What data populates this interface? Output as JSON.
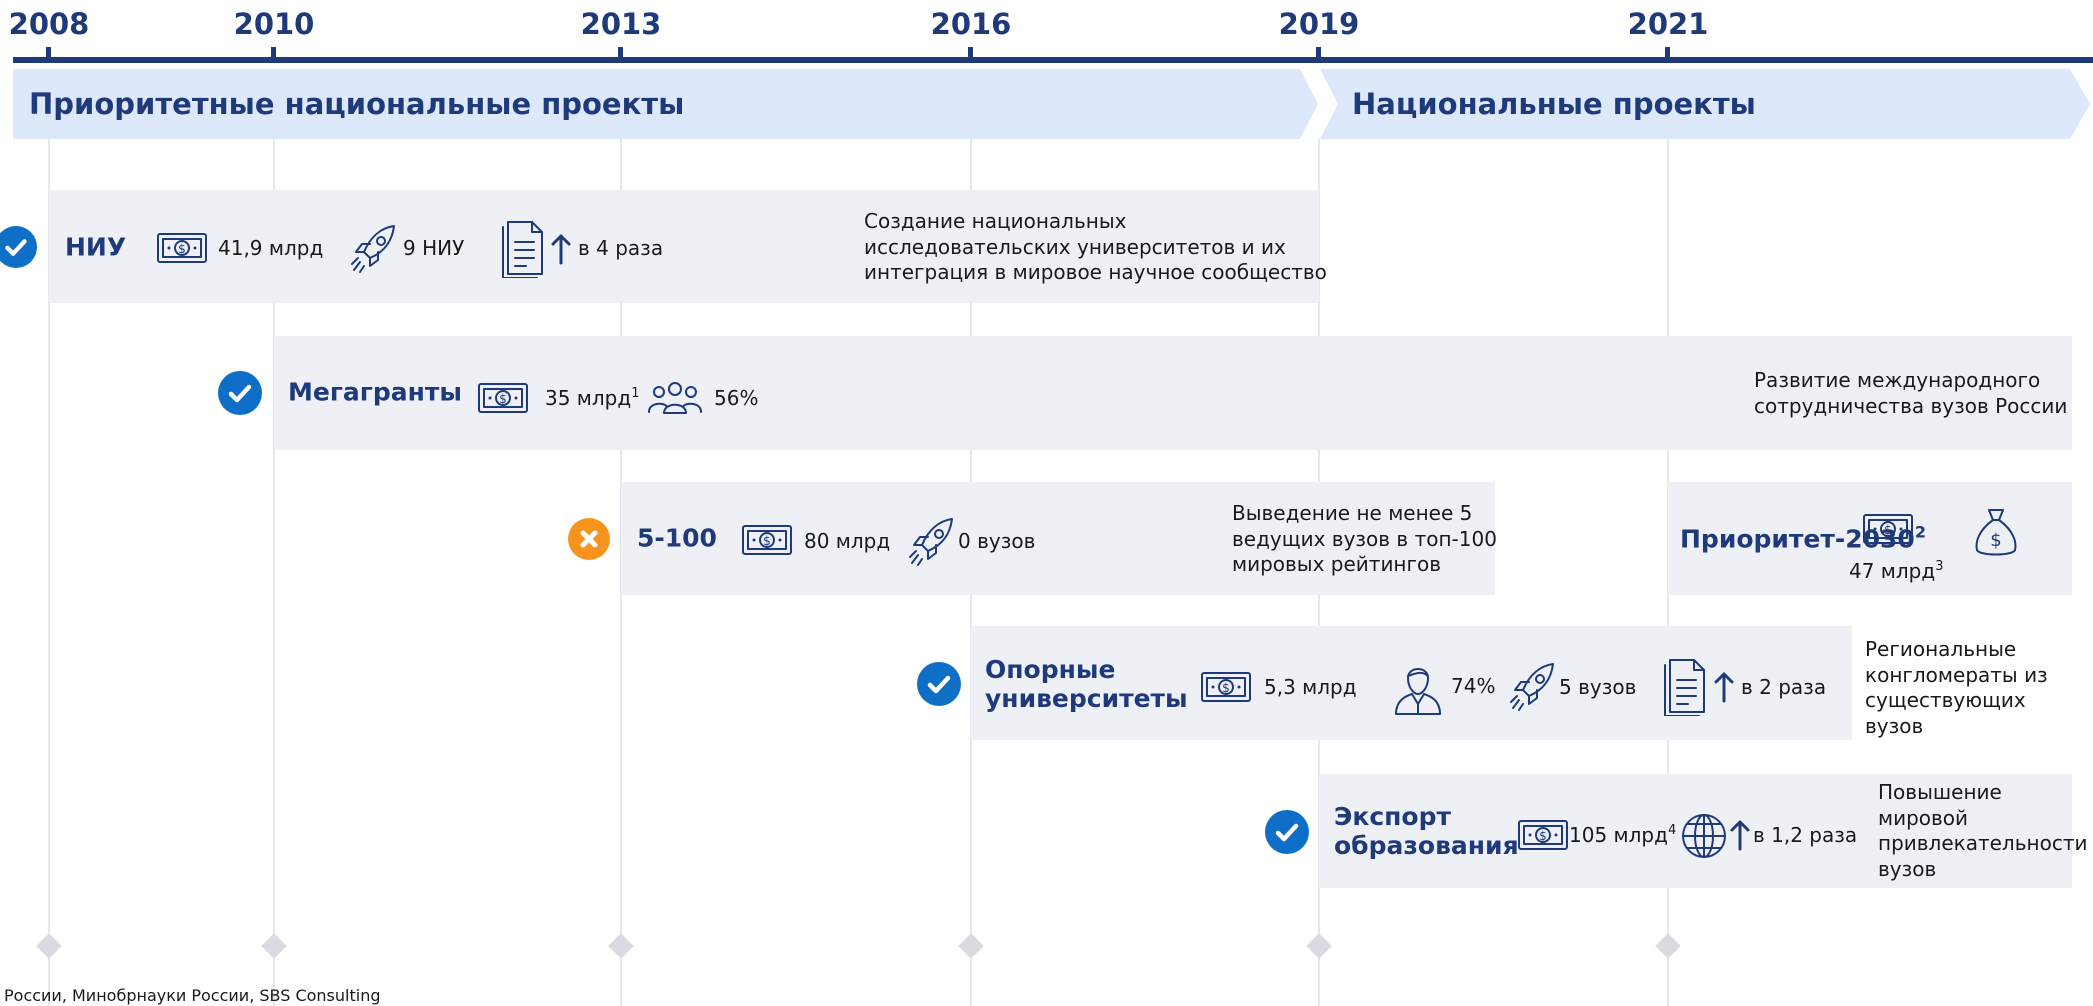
{
  "timeline": {
    "years": [
      "2008",
      "2010",
      "2013",
      "2016",
      "2019",
      "2021"
    ]
  },
  "phases": [
    "Приоритетные национальные проекты",
    "Национальные проекты"
  ],
  "projects": [
    {
      "name": "НИУ",
      "metrics": [
        {
          "text": "41,9 млрд"
        },
        {
          "text": "9 НИУ"
        },
        {
          "text": "в 4 раза"
        }
      ],
      "description": [
        "Создание национальных",
        "исследовательских университетов и их",
        "интеграция в мировое научное сообщество"
      ]
    },
    {
      "name": "Мегагранты",
      "metrics": [
        {
          "text": "35 млрд",
          "note": "1"
        },
        {
          "text": "56%"
        }
      ],
      "description": [
        "Развитие международного",
        "сотрудничества вузов России"
      ]
    },
    {
      "name": "5-100",
      "metrics": [
        {
          "text": "80 млрд"
        },
        {
          "text": "0 вузов"
        }
      ],
      "description": [
        "Выведение не менее 5",
        "ведущих вузов в топ-100",
        "мировых рейтингов"
      ]
    },
    {
      "name": "Приоритет-2030",
      "name_note": "2",
      "metrics": [
        {
          "text": "47 млрд",
          "note": "3"
        }
      ]
    },
    {
      "name": "Опорные университеты",
      "metrics": [
        {
          "text": "5,3 млрд"
        },
        {
          "text": "74%"
        },
        {
          "text": "5 вузов"
        },
        {
          "text": "в 2 раза"
        }
      ],
      "description": [
        "Региональные",
        "конгломераты из",
        "существующих",
        "вузов"
      ]
    },
    {
      "name": "Экспорт образования",
      "metrics": [
        {
          "text": "105 млрд",
          "note": "4"
        },
        {
          "text": "в 1,2 раза"
        }
      ],
      "description": [
        "Повышение",
        "мировой",
        "привлекательности",
        "вузов"
      ]
    }
  ],
  "source": "России, Минобрнауки России, SBS Consulting"
}
